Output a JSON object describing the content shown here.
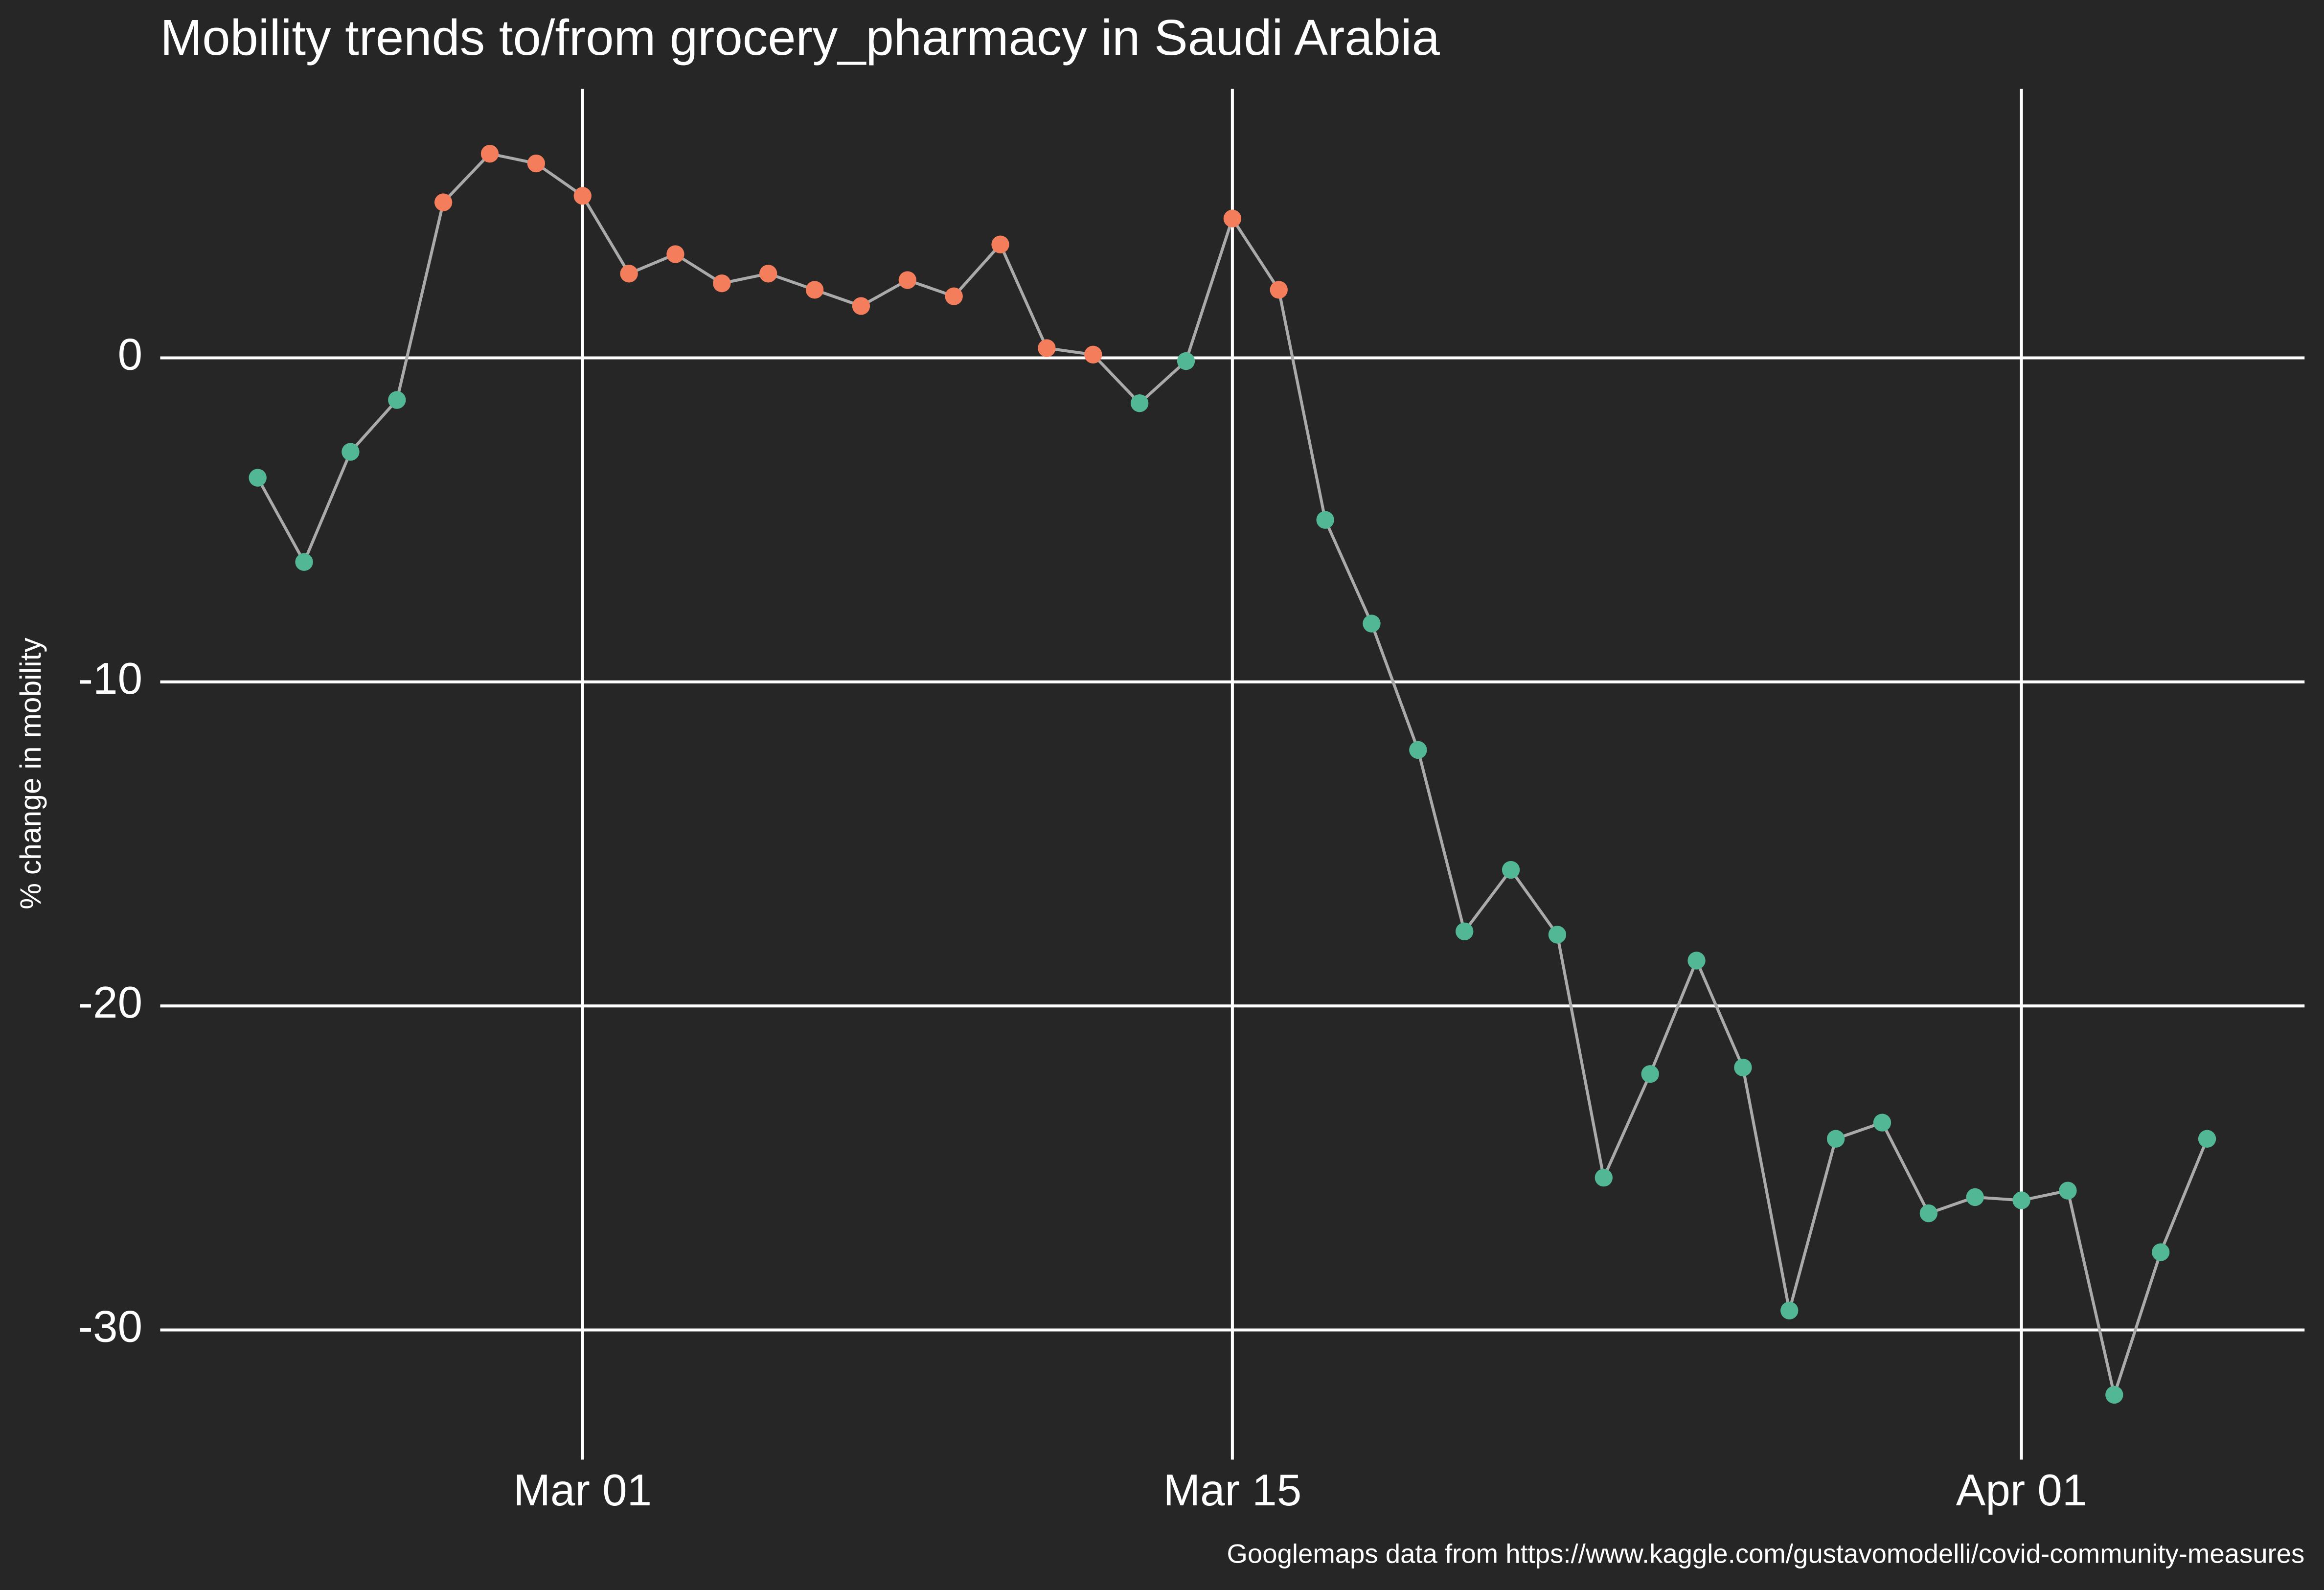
{
  "chart_data": {
    "type": "line",
    "title": "Mobility trends to/from grocery_pharmacy in Saudi Arabia",
    "y_label": "% change in mobility",
    "caption": "Googlemaps data from https://www.kaggle.com/gustavomodelli/covid-community-measures",
    "x": [
      "Feb 23",
      "Feb 24",
      "Feb 25",
      "Feb 26",
      "Feb 27",
      "Feb 28",
      "Feb 29",
      "Mar 01",
      "Mar 02",
      "Mar 03",
      "Mar 04",
      "Mar 05",
      "Mar 06",
      "Mar 07",
      "Mar 08",
      "Mar 09",
      "Mar 10",
      "Mar 11",
      "Mar 12",
      "Mar 13",
      "Mar 14",
      "Mar 15",
      "Mar 16",
      "Mar 17",
      "Mar 18",
      "Mar 19",
      "Mar 20",
      "Mar 21",
      "Mar 22",
      "Mar 23",
      "Mar 24",
      "Mar 25",
      "Mar 26",
      "Mar 27",
      "Mar 28",
      "Mar 29",
      "Mar 30",
      "Mar 31",
      "Apr 01",
      "Apr 02",
      "Apr 03",
      "Apr 04",
      "Apr 05"
    ],
    "series": [
      {
        "color": "#aaaaaa",
        "values": [
          -3.7,
          -6.3,
          -2.9,
          -1.3,
          4.8,
          6.3,
          6.0,
          5.0,
          2.6,
          3.2,
          2.3,
          2.6,
          2.1,
          1.6,
          2.4,
          1.9,
          3.5,
          0.3,
          0.1,
          -1.4,
          -0.1,
          4.3,
          2.1,
          -5.0,
          -8.2,
          -12.1,
          -17.7,
          -15.8,
          -17.8,
          -25.3,
          -22.1,
          -18.6,
          -21.9,
          -29.4,
          -24.1,
          -23.6,
          -26.4,
          -25.9,
          -26.0,
          -25.7,
          -32.0,
          -27.6,
          -24.1
        ]
      }
    ],
    "point_colors": {
      "above_zero": "#f47d5b",
      "below_zero": "#52b795"
    },
    "xticks": [
      "Mar 01",
      "Mar 15",
      "Apr 01"
    ],
    "ylim": [
      -34,
      8.3
    ],
    "yticks": [
      -30,
      -20,
      -10,
      0
    ],
    "grid": true,
    "background": "#262626"
  }
}
